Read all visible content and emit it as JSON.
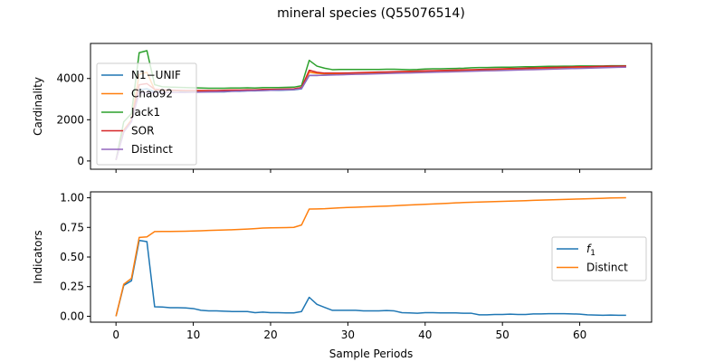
{
  "figure": {
    "title": "mineral species (Q55076514)"
  },
  "chart_data": [
    {
      "type": "line",
      "title": "",
      "xlabel": "",
      "ylabel": "Cardinality",
      "xlim": [
        -3.3,
        69.3
      ],
      "ylim": [
        -400,
        5700
      ],
      "xticks": [
        0,
        10,
        20,
        30,
        40,
        50,
        60
      ],
      "yticks": [
        0,
        2000,
        4000
      ],
      "ytick_labels": [
        "0",
        "2000",
        "4000"
      ],
      "show_xtick_labels": false,
      "legend_placement": "upper-left",
      "series": [
        {
          "name": "N1−UNIF",
          "color": "#1f77b4",
          "x": [
            0,
            1,
            2,
            3,
            4,
            5,
            6,
            7,
            8,
            9,
            10,
            11,
            12,
            13,
            14,
            15,
            16,
            17,
            18,
            19,
            20,
            21,
            22,
            23,
            24,
            25,
            26,
            27,
            28,
            29,
            30,
            31,
            32,
            33,
            34,
            35,
            36,
            37,
            38,
            39,
            40,
            41,
            42,
            43,
            44,
            45,
            46,
            47,
            48,
            49,
            50,
            51,
            52,
            53,
            54,
            55,
            56,
            57,
            58,
            59,
            60,
            61,
            62,
            63,
            64,
            65,
            66
          ],
          "y": [
            50,
            1400,
            1900,
            3450,
            3500,
            3350,
            3400,
            3400,
            3400,
            3350,
            3350,
            3350,
            3350,
            3350,
            3350,
            3380,
            3380,
            3400,
            3400,
            3420,
            3430,
            3430,
            3440,
            3450,
            3500,
            4150,
            4150,
            4170,
            4180,
            4190,
            4200,
            4220,
            4230,
            4240,
            4250,
            4260,
            4270,
            4280,
            4290,
            4300,
            4310,
            4320,
            4330,
            4340,
            4350,
            4360,
            4370,
            4380,
            4390,
            4400,
            4410,
            4420,
            4430,
            4440,
            4450,
            4460,
            4470,
            4480,
            4490,
            4500,
            4510,
            4520,
            4530,
            4540,
            4550,
            4560,
            4570
          ]
        },
        {
          "name": "Chao92",
          "color": "#ff7f0e",
          "x": [
            0,
            1,
            2,
            3,
            4,
            5,
            6,
            7,
            8,
            9,
            10,
            11,
            12,
            13,
            14,
            15,
            16,
            17,
            18,
            19,
            20,
            21,
            22,
            23,
            24,
            25,
            26,
            27,
            28,
            29,
            30,
            31,
            32,
            33,
            34,
            35,
            36,
            37,
            38,
            39,
            40,
            41,
            42,
            43,
            44,
            45,
            46,
            47,
            48,
            49,
            50,
            51,
            52,
            53,
            54,
            55,
            56,
            57,
            58,
            59,
            60,
            61,
            62,
            63,
            64,
            65,
            66
          ],
          "y": [
            50,
            1500,
            2000,
            4200,
            4300,
            3450,
            3420,
            3420,
            3410,
            3400,
            3400,
            3400,
            3400,
            3400,
            3410,
            3420,
            3420,
            3430,
            3440,
            3450,
            3460,
            3470,
            3480,
            3490,
            3560,
            4300,
            4250,
            4230,
            4240,
            4240,
            4250,
            4260,
            4270,
            4280,
            4290,
            4300,
            4310,
            4320,
            4330,
            4340,
            4350,
            4360,
            4370,
            4380,
            4390,
            4400,
            4410,
            4420,
            4430,
            4440,
            4450,
            4460,
            4470,
            4480,
            4490,
            4500,
            4510,
            4520,
            4530,
            4540,
            4550,
            4560,
            4570,
            4580,
            4590,
            4600,
            4610
          ]
        },
        {
          "name": "Jack1",
          "color": "#2ca02c",
          "x": [
            0,
            1,
            2,
            3,
            4,
            5,
            6,
            7,
            8,
            9,
            10,
            11,
            12,
            13,
            14,
            15,
            16,
            17,
            18,
            19,
            20,
            21,
            22,
            23,
            24,
            25,
            26,
            27,
            28,
            29,
            30,
            31,
            32,
            33,
            34,
            35,
            36,
            37,
            38,
            39,
            40,
            41,
            42,
            43,
            44,
            45,
            46,
            47,
            48,
            49,
            50,
            51,
            52,
            53,
            54,
            55,
            56,
            57,
            58,
            59,
            60,
            61,
            62,
            63,
            64,
            65,
            66
          ],
          "y": [
            50,
            1900,
            2300,
            5250,
            5350,
            3700,
            3600,
            3580,
            3570,
            3560,
            3550,
            3540,
            3530,
            3530,
            3530,
            3540,
            3540,
            3550,
            3540,
            3560,
            3560,
            3560,
            3570,
            3580,
            3650,
            4880,
            4600,
            4500,
            4430,
            4440,
            4440,
            4440,
            4440,
            4440,
            4440,
            4450,
            4450,
            4440,
            4430,
            4440,
            4460,
            4470,
            4470,
            4480,
            4490,
            4500,
            4520,
            4530,
            4530,
            4540,
            4550,
            4550,
            4560,
            4570,
            4570,
            4580,
            4590,
            4590,
            4600,
            4600,
            4610,
            4610,
            4610,
            4610,
            4620,
            4620,
            4620
          ]
        },
        {
          "name": "SOR",
          "color": "#d62728",
          "x": [
            0,
            1,
            2,
            3,
            4,
            5,
            6,
            7,
            8,
            9,
            10,
            11,
            12,
            13,
            14,
            15,
            16,
            17,
            18,
            19,
            20,
            21,
            22,
            23,
            24,
            25,
            26,
            27,
            28,
            29,
            30,
            31,
            32,
            33,
            34,
            35,
            36,
            37,
            38,
            39,
            40,
            41,
            42,
            43,
            44,
            45,
            46,
            47,
            48,
            49,
            50,
            51,
            52,
            53,
            54,
            55,
            56,
            57,
            58,
            59,
            60,
            61,
            62,
            63,
            64,
            65,
            66
          ],
          "y": [
            50,
            1450,
            1950,
            3700,
            3750,
            3480,
            3450,
            3440,
            3430,
            3420,
            3420,
            3420,
            3420,
            3420,
            3430,
            3440,
            3440,
            3450,
            3450,
            3470,
            3470,
            3480,
            3490,
            3500,
            3560,
            4400,
            4300,
            4260,
            4260,
            4260,
            4270,
            4280,
            4290,
            4300,
            4310,
            4320,
            4330,
            4340,
            4350,
            4360,
            4370,
            4380,
            4390,
            4400,
            4410,
            4420,
            4430,
            4440,
            4450,
            4460,
            4470,
            4480,
            4490,
            4500,
            4510,
            4520,
            4530,
            4540,
            4550,
            4560,
            4570,
            4570,
            4580,
            4590,
            4600,
            4600,
            4610
          ]
        },
        {
          "name": "Distinct",
          "color": "#9467bd",
          "x": [
            0,
            1,
            2,
            3,
            4,
            5,
            6,
            7,
            8,
            9,
            10,
            11,
            12,
            13,
            14,
            15,
            16,
            17,
            18,
            19,
            20,
            21,
            22,
            23,
            24,
            25,
            26,
            27,
            28,
            29,
            30,
            31,
            32,
            33,
            34,
            35,
            36,
            37,
            38,
            39,
            40,
            41,
            42,
            43,
            44,
            45,
            46,
            47,
            48,
            49,
            50,
            51,
            52,
            53,
            54,
            55,
            56,
            57,
            58,
            59,
            60,
            61,
            62,
            63,
            64,
            65,
            66
          ],
          "y": [
            50,
            1400,
            1900,
            3300,
            3320,
            3320,
            3320,
            3320,
            3320,
            3320,
            3330,
            3340,
            3350,
            3360,
            3370,
            3380,
            3390,
            3400,
            3410,
            3420,
            3430,
            3440,
            3450,
            3460,
            3520,
            4150,
            4150,
            4160,
            4170,
            4180,
            4190,
            4200,
            4210,
            4220,
            4230,
            4240,
            4250,
            4260,
            4270,
            4280,
            4290,
            4300,
            4310,
            4320,
            4330,
            4340,
            4350,
            4360,
            4370,
            4380,
            4390,
            4400,
            4410,
            4420,
            4430,
            4440,
            4450,
            4460,
            4470,
            4480,
            4490,
            4500,
            4510,
            4520,
            4530,
            4540,
            4550
          ]
        }
      ]
    },
    {
      "type": "line",
      "title": "",
      "xlabel": "Sample Periods",
      "ylabel": "Indicators",
      "xlim": [
        -3.3,
        69.3
      ],
      "ylim": [
        -0.05,
        1.05
      ],
      "xticks": [
        0,
        10,
        20,
        30,
        40,
        50,
        60
      ],
      "yticks": [
        0,
        0.25,
        0.5,
        0.75,
        1
      ],
      "ytick_labels": [
        "0.00",
        "0.25",
        "0.50",
        "0.75",
        "1.00"
      ],
      "show_xtick_labels": true,
      "legend_placement": "center-right",
      "series": [
        {
          "name": "f1",
          "label_main": "f",
          "label_sub": "1",
          "color": "#1f77b4",
          "x": [
            0,
            1,
            2,
            3,
            4,
            5,
            6,
            7,
            8,
            9,
            10,
            11,
            12,
            13,
            14,
            15,
            16,
            17,
            18,
            19,
            20,
            21,
            22,
            23,
            24,
            25,
            26,
            27,
            28,
            29,
            30,
            31,
            32,
            33,
            34,
            35,
            36,
            37,
            38,
            39,
            40,
            41,
            42,
            43,
            44,
            45,
            46,
            47,
            48,
            49,
            50,
            51,
            52,
            53,
            54,
            55,
            56,
            57,
            58,
            59,
            60,
            61,
            62,
            63,
            64,
            65,
            66
          ],
          "y": [
            0.0,
            0.26,
            0.3,
            0.64,
            0.63,
            0.08,
            0.078,
            0.072,
            0.072,
            0.07,
            0.065,
            0.05,
            0.045,
            0.045,
            0.043,
            0.04,
            0.04,
            0.04,
            0.03,
            0.035,
            0.03,
            0.03,
            0.028,
            0.028,
            0.04,
            0.16,
            0.1,
            0.075,
            0.05,
            0.05,
            0.05,
            0.05,
            0.045,
            0.045,
            0.045,
            0.048,
            0.045,
            0.03,
            0.028,
            0.025,
            0.03,
            0.03,
            0.028,
            0.028,
            0.028,
            0.025,
            0.025,
            0.012,
            0.012,
            0.015,
            0.015,
            0.018,
            0.015,
            0.015,
            0.02,
            0.02,
            0.022,
            0.022,
            0.022,
            0.02,
            0.018,
            0.012,
            0.01,
            0.008,
            0.01,
            0.008,
            0.008
          ]
        },
        {
          "name": "Distinct",
          "color": "#ff7f0e",
          "x": [
            0,
            1,
            2,
            3,
            4,
            5,
            6,
            7,
            8,
            9,
            10,
            11,
            12,
            13,
            14,
            15,
            16,
            17,
            18,
            19,
            20,
            21,
            22,
            23,
            24,
            25,
            26,
            27,
            28,
            29,
            30,
            31,
            32,
            33,
            34,
            35,
            36,
            37,
            38,
            39,
            40,
            41,
            42,
            43,
            44,
            45,
            46,
            47,
            48,
            49,
            50,
            51,
            52,
            53,
            54,
            55,
            56,
            57,
            58,
            59,
            60,
            61,
            62,
            63,
            64,
            65,
            66
          ],
          "y": [
            0.0,
            0.27,
            0.32,
            0.665,
            0.67,
            0.715,
            0.716,
            0.716,
            0.717,
            0.718,
            0.72,
            0.722,
            0.724,
            0.726,
            0.728,
            0.73,
            0.733,
            0.736,
            0.74,
            0.744,
            0.746,
            0.747,
            0.748,
            0.75,
            0.77,
            0.905,
            0.906,
            0.908,
            0.912,
            0.915,
            0.918,
            0.92,
            0.923,
            0.925,
            0.928,
            0.93,
            0.933,
            0.936,
            0.939,
            0.942,
            0.945,
            0.948,
            0.951,
            0.954,
            0.957,
            0.96,
            0.962,
            0.964,
            0.966,
            0.968,
            0.97,
            0.972,
            0.974,
            0.976,
            0.978,
            0.98,
            0.982,
            0.984,
            0.986,
            0.988,
            0.99,
            0.992,
            0.994,
            0.996,
            0.998,
            0.999,
            1.0
          ]
        }
      ]
    }
  ]
}
